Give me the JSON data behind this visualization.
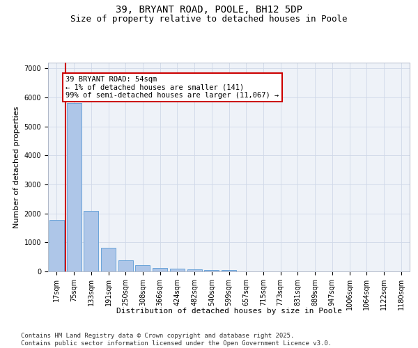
{
  "title": "39, BRYANT ROAD, POOLE, BH12 5DP",
  "subtitle": "Size of property relative to detached houses in Poole",
  "xlabel": "Distribution of detached houses by size in Poole",
  "ylabel": "Number of detached properties",
  "categories": [
    "17sqm",
    "75sqm",
    "133sqm",
    "191sqm",
    "250sqm",
    "308sqm",
    "366sqm",
    "424sqm",
    "482sqm",
    "540sqm",
    "599sqm",
    "657sqm",
    "715sqm",
    "773sqm",
    "831sqm",
    "889sqm",
    "947sqm",
    "1006sqm",
    "1064sqm",
    "1122sqm",
    "1180sqm"
  ],
  "values": [
    1780,
    5800,
    2080,
    820,
    380,
    220,
    120,
    95,
    70,
    55,
    50,
    0,
    0,
    0,
    0,
    0,
    0,
    0,
    0,
    0,
    0
  ],
  "bar_color": "#aec6e8",
  "bar_edge_color": "#5b9bd5",
  "marker_color": "#cc0000",
  "annotation_text": "39 BRYANT ROAD: 54sqm\n← 1% of detached houses are smaller (141)\n99% of semi-detached houses are larger (11,067) →",
  "annotation_box_color": "#cc0000",
  "ylim": [
    0,
    7200
  ],
  "yticks": [
    0,
    1000,
    2000,
    3000,
    4000,
    5000,
    6000,
    7000
  ],
  "grid_color": "#d0d8e8",
  "background_color": "#eef2f8",
  "footer_line1": "Contains HM Land Registry data © Crown copyright and database right 2025.",
  "footer_line2": "Contains public sector information licensed under the Open Government Licence v3.0.",
  "title_fontsize": 10,
  "subtitle_fontsize": 9,
  "axis_label_fontsize": 8,
  "tick_fontsize": 7,
  "annotation_fontsize": 7.5,
  "footer_fontsize": 6.5
}
